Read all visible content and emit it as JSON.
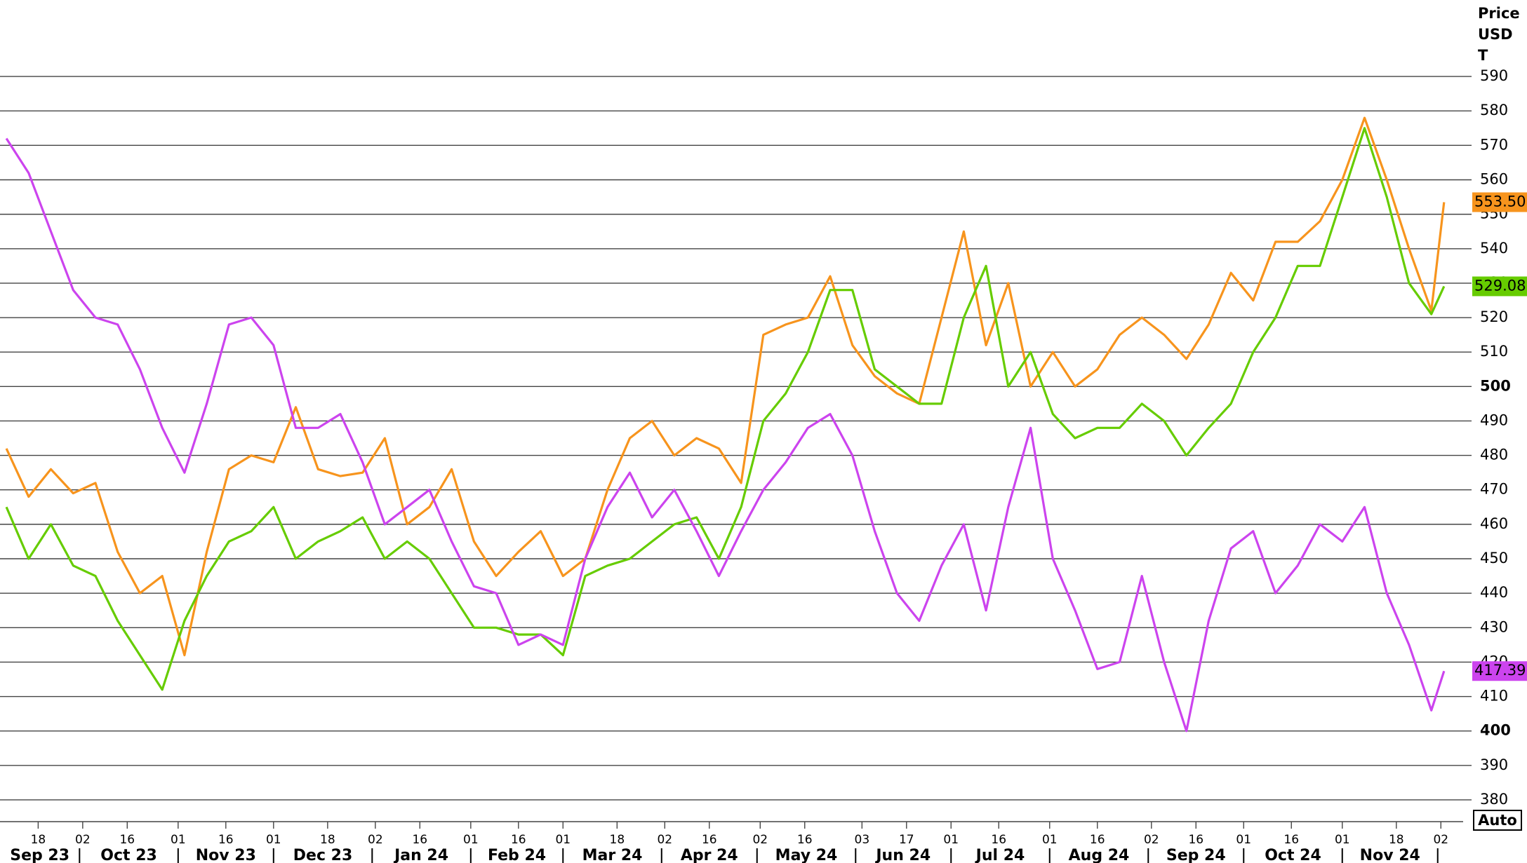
{
  "chart_data": {
    "type": "line",
    "y_axis_title": [
      "Price",
      "USD",
      "T"
    ],
    "button": "Auto",
    "x": [
      "2023-09-08",
      "2023-09-15",
      "2023-09-22",
      "2023-09-29",
      "2023-10-06",
      "2023-10-13",
      "2023-10-20",
      "2023-10-27",
      "2023-11-03",
      "2023-11-10",
      "2023-11-17",
      "2023-11-24",
      "2023-12-01",
      "2023-12-08",
      "2023-12-15",
      "2023-12-22",
      "2023-12-29",
      "2024-01-05",
      "2024-01-12",
      "2024-01-19",
      "2024-01-26",
      "2024-02-02",
      "2024-02-09",
      "2024-02-16",
      "2024-02-23",
      "2024-03-01",
      "2024-03-08",
      "2024-03-15",
      "2024-03-22",
      "2024-03-29",
      "2024-04-05",
      "2024-04-12",
      "2024-04-19",
      "2024-04-26",
      "2024-05-03",
      "2024-05-10",
      "2024-05-17",
      "2024-05-24",
      "2024-05-31",
      "2024-06-07",
      "2024-06-14",
      "2024-06-21",
      "2024-06-28",
      "2024-07-05",
      "2024-07-12",
      "2024-07-19",
      "2024-07-26",
      "2024-08-02",
      "2024-08-09",
      "2024-08-16",
      "2024-08-23",
      "2024-08-30",
      "2024-09-06",
      "2024-09-13",
      "2024-09-20",
      "2024-09-27",
      "2024-10-04",
      "2024-10-11",
      "2024-10-18",
      "2024-10-25",
      "2024-11-01",
      "2024-11-08",
      "2024-11-15",
      "2024-11-22",
      "2024-11-29",
      "2024-12-03"
    ],
    "series": [
      {
        "color": "#f7941d",
        "values": [
          482,
          468,
          476,
          469,
          472,
          452,
          440,
          445,
          422,
          452,
          476,
          480,
          478,
          494,
          476,
          474,
          475,
          485,
          460,
          465,
          476,
          455,
          445,
          452,
          458,
          445,
          450,
          470,
          485,
          490,
          480,
          485,
          482,
          472,
          515,
          518,
          520,
          532,
          512,
          503,
          498,
          495,
          520,
          545,
          512,
          530,
          500,
          510,
          500,
          505,
          515,
          520,
          515,
          508,
          518,
          533,
          525,
          542,
          542,
          548,
          560,
          578,
          560,
          540,
          522,
          553.5
        ],
        "value_labels": [
          null,
          null,
          null,
          null,
          null,
          null,
          null,
          null,
          null,
          null,
          null,
          null,
          null,
          null,
          null,
          null,
          null,
          null,
          null,
          null,
          null,
          null,
          null,
          null,
          null,
          null,
          null,
          null,
          null,
          null,
          null,
          null,
          null,
          null,
          null,
          null,
          null,
          null,
          null,
          null,
          null,
          null,
          null,
          null,
          null,
          null,
          null,
          null,
          null,
          null,
          null,
          null,
          null,
          null,
          null,
          null,
          null,
          null,
          null,
          null,
          null,
          null,
          null,
          null,
          null,
          "553.50"
        ]
      },
      {
        "color": "#66cc00",
        "values": [
          465,
          450,
          460,
          448,
          445,
          432,
          422,
          412,
          432,
          445,
          455,
          458,
          465,
          450,
          455,
          458,
          462,
          450,
          455,
          450,
          440,
          430,
          430,
          428,
          428,
          422,
          445,
          448,
          450,
          455,
          460,
          462,
          450,
          465,
          490,
          498,
          510,
          528,
          528,
          505,
          500,
          495,
          495,
          520,
          535,
          500,
          510,
          492,
          485,
          488,
          488,
          495,
          490,
          480,
          488,
          495,
          510,
          520,
          535,
          535,
          555,
          575,
          555,
          530,
          521,
          529.08
        ],
        "value_labels": [
          null,
          null,
          null,
          null,
          null,
          null,
          null,
          null,
          null,
          null,
          null,
          null,
          null,
          null,
          null,
          null,
          null,
          null,
          null,
          null,
          null,
          null,
          null,
          null,
          null,
          null,
          null,
          null,
          null,
          null,
          null,
          null,
          null,
          null,
          null,
          null,
          null,
          null,
          null,
          null,
          null,
          null,
          null,
          null,
          null,
          null,
          null,
          null,
          null,
          null,
          null,
          null,
          null,
          null,
          null,
          null,
          null,
          null,
          null,
          null,
          null,
          null,
          null,
          null,
          null,
          "529.08"
        ]
      },
      {
        "color": "#cc44ee",
        "values": [
          572,
          562,
          545,
          528,
          520,
          518,
          505,
          488,
          475,
          495,
          518,
          520,
          512,
          488,
          488,
          492,
          478,
          460,
          465,
          470,
          455,
          442,
          440,
          425,
          428,
          425,
          450,
          465,
          475,
          462,
          470,
          458,
          445,
          458,
          470,
          478,
          488,
          492,
          480,
          458,
          440,
          432,
          448,
          460,
          435,
          465,
          488,
          450,
          435,
          418,
          420,
          445,
          420,
          400,
          432,
          453,
          458,
          440,
          448,
          460,
          455,
          465,
          440,
          425,
          406,
          417.39
        ],
        "value_labels": [
          null,
          null,
          null,
          null,
          null,
          null,
          null,
          null,
          null,
          null,
          null,
          null,
          null,
          null,
          null,
          null,
          null,
          null,
          null,
          null,
          null,
          null,
          null,
          null,
          null,
          null,
          null,
          null,
          null,
          null,
          null,
          null,
          null,
          null,
          null,
          null,
          null,
          null,
          null,
          null,
          null,
          null,
          null,
          null,
          null,
          null,
          null,
          null,
          null,
          null,
          null,
          null,
          null,
          null,
          null,
          null,
          null,
          null,
          null,
          null,
          null,
          null,
          null,
          null,
          null,
          "417.39"
        ]
      }
    ],
    "xlim": [
      "2023-09-06",
      "2024-12-09"
    ],
    "xticks": [
      {
        "value": "2023-09-18",
        "label": "18"
      },
      {
        "value": "2023-10-02",
        "label": "02"
      },
      {
        "value": "2023-10-16",
        "label": "16"
      },
      {
        "value": "2023-11-01",
        "label": "01"
      },
      {
        "value": "2023-11-16",
        "label": "16"
      },
      {
        "value": "2023-12-01",
        "label": "01"
      },
      {
        "value": "2023-12-18",
        "label": "18"
      },
      {
        "value": "2024-01-02",
        "label": "02"
      },
      {
        "value": "2024-01-16",
        "label": "16"
      },
      {
        "value": "2024-02-01",
        "label": "01"
      },
      {
        "value": "2024-02-16",
        "label": "16"
      },
      {
        "value": "2024-03-01",
        "label": "01"
      },
      {
        "value": "2024-03-18",
        "label": "18"
      },
      {
        "value": "2024-04-02",
        "label": "02"
      },
      {
        "value": "2024-04-16",
        "label": "16"
      },
      {
        "value": "2024-05-02",
        "label": "02"
      },
      {
        "value": "2024-05-16",
        "label": "16"
      },
      {
        "value": "2024-06-03",
        "label": "03"
      },
      {
        "value": "2024-06-17",
        "label": "17"
      },
      {
        "value": "2024-07-01",
        "label": "01"
      },
      {
        "value": "2024-07-16",
        "label": "16"
      },
      {
        "value": "2024-08-01",
        "label": "01"
      },
      {
        "value": "2024-08-16",
        "label": "16"
      },
      {
        "value": "2024-09-02",
        "label": "02"
      },
      {
        "value": "2024-09-16",
        "label": "16"
      },
      {
        "value": "2024-10-01",
        "label": "01"
      },
      {
        "value": "2024-10-16",
        "label": "16"
      },
      {
        "value": "2024-11-01",
        "label": "01"
      },
      {
        "value": "2024-11-18",
        "label": "18"
      },
      {
        "value": "2024-12-02",
        "label": "02"
      }
    ],
    "months": [
      {
        "value": "2023-09",
        "label": "Sep 23"
      },
      {
        "value": "2023-10",
        "label": "Oct 23"
      },
      {
        "value": "2023-11",
        "label": "Nov 23"
      },
      {
        "value": "2023-12",
        "label": "Dec 23"
      },
      {
        "value": "2024-01",
        "label": "Jan 24"
      },
      {
        "value": "2024-02",
        "label": "Feb 24"
      },
      {
        "value": "2024-03",
        "label": "Mar 24"
      },
      {
        "value": "2024-04",
        "label": "Apr 24"
      },
      {
        "value": "2024-05",
        "label": "May 24"
      },
      {
        "value": "2024-06",
        "label": "Jun 24"
      },
      {
        "value": "2024-07",
        "label": "Jul 24"
      },
      {
        "value": "2024-08",
        "label": "Aug 24"
      },
      {
        "value": "2024-09",
        "label": "Sep 24"
      },
      {
        "value": "2024-10",
        "label": "Oct 24"
      },
      {
        "value": "2024-11",
        "label": "Nov 24"
      }
    ],
    "ylim": [
      374.5,
      612.2
    ],
    "yticks": [
      380,
      390,
      400,
      410,
      420,
      430,
      440,
      450,
      460,
      470,
      480,
      490,
      500,
      510,
      520,
      530,
      540,
      550,
      560,
      570,
      580,
      590
    ],
    "grid": true
  }
}
